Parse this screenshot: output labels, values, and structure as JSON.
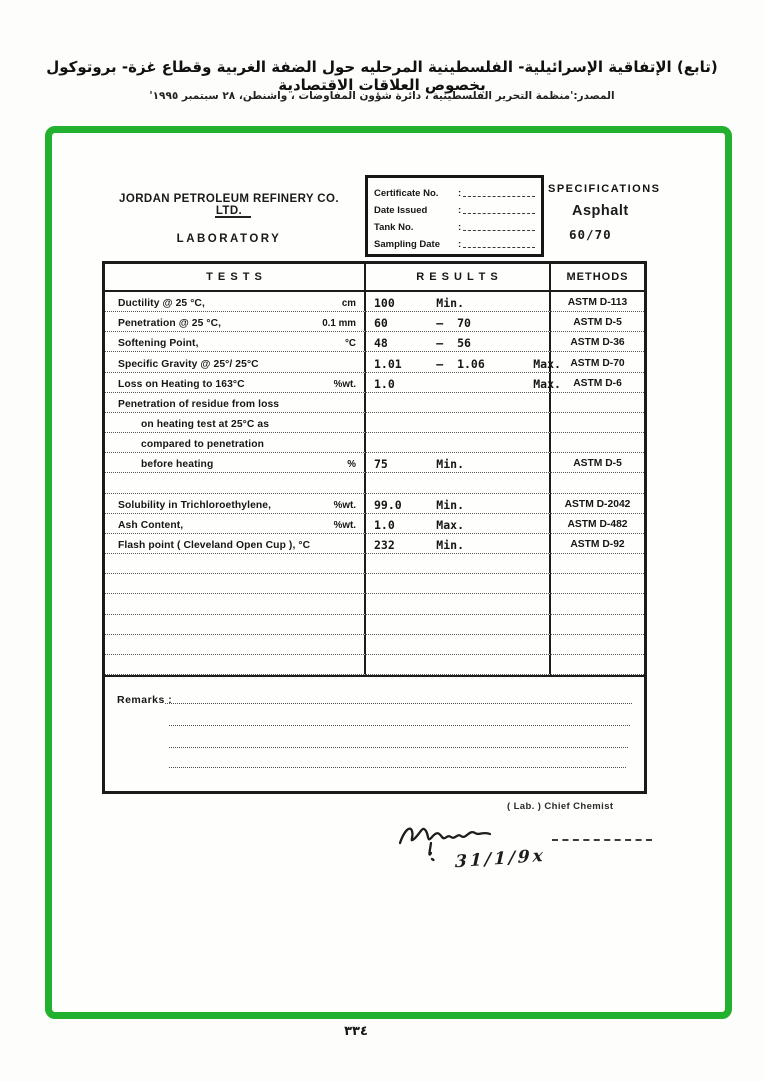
{
  "page_header": {
    "title_ar": "(تابع) الإتفاقية الإسرائيلية- الفلسطينية المرحليه حول الضفة الغربية وقطاع غزة- بروتوكول بخصوص العلاقات الاقتصادية",
    "source_ar": "المصدر:'منظمة التحرير الفلسطينية ، دائرة شؤون المفاوضات ، واشنطن، ٢٨ سبتمبر ١٩٩٥'",
    "page_number_ar": "٣٣٤"
  },
  "frame": {
    "border_color": "#21b12e"
  },
  "document": {
    "company": "JORDAN PETROLEUM REFINERY CO. LTD.",
    "department": "LABORATORY",
    "certificate_fields": [
      {
        "label": "Certificate No."
      },
      {
        "label": "Date Issued"
      },
      {
        "label": "Tank No."
      },
      {
        "label": "Sampling Date"
      }
    ],
    "specifications": {
      "heading": "SPECIFICATIONS",
      "product": "Asphalt",
      "grade": "60/70"
    },
    "table": {
      "headers": {
        "tests": "T E S T S",
        "results": "R E S U L T S",
        "methods": "METHODS"
      },
      "rows": [
        {
          "label": "Ductility    @ 25 °C,",
          "unit": "cm",
          "result": "100      Min.",
          "method": "ASTM D-113",
          "indent": false
        },
        {
          "label": "Penetration @ 25 °C,",
          "unit": "0.1 mm",
          "result": "60       –  70",
          "method": "ASTM D-5",
          "indent": false
        },
        {
          "label": "Softening Point,",
          "unit": "°C",
          "result": "48       –  56",
          "method": "ASTM D-36",
          "indent": false
        },
        {
          "label": "Specific Gravity @ 25°/ 25°C",
          "unit": "",
          "result": "1.01     –  1.06       Max.",
          "method": "ASTM D-70",
          "indent": false
        },
        {
          "label": "Loss on Heating to 163°C",
          "unit": "%wt.",
          "result": "1.0                    Max.",
          "method": "ASTM D-6",
          "indent": false
        },
        {
          "label": "Penetration of residue from loss",
          "unit": "",
          "result": "",
          "method": "",
          "indent": false
        },
        {
          "label": "on heating test at 25°C as",
          "unit": "",
          "result": "",
          "method": "",
          "indent": true
        },
        {
          "label": "compared to penetration",
          "unit": "",
          "result": "",
          "method": "",
          "indent": true
        },
        {
          "label": "before heating",
          "unit": "%",
          "result": "75       Min.",
          "method": "ASTM D-5",
          "indent": true
        },
        {
          "label": "",
          "unit": "",
          "result": "",
          "method": "",
          "indent": false
        },
        {
          "label": "Solubility in Trichloroethylene,",
          "unit": "%wt.",
          "result": "99.0     Min.",
          "method": "ASTM D-2042",
          "indent": false
        },
        {
          "label": "Ash Content,",
          "unit": "%wt.",
          "result": "1.0      Max.",
          "method": "ASTM D-482",
          "indent": false
        },
        {
          "label": "Flash point ( Cleveland Open Cup ), °C",
          "unit": "",
          "result": "232      Min.",
          "method": "ASTM D-92",
          "indent": false
        },
        {
          "label": "",
          "unit": "",
          "result": "",
          "method": "",
          "indent": false
        },
        {
          "label": "",
          "unit": "",
          "result": "",
          "method": "",
          "indent": false
        },
        {
          "label": "",
          "unit": "",
          "result": "",
          "method": "",
          "indent": false
        },
        {
          "label": "",
          "unit": "",
          "result": "",
          "method": "",
          "indent": false
        },
        {
          "label": "",
          "unit": "",
          "result": "",
          "method": "",
          "indent": false
        },
        {
          "label": "",
          "unit": "",
          "result": "",
          "method": "",
          "indent": false
        }
      ],
      "remarks_label": "Remarks :"
    },
    "signature": {
      "title": "( Lab. ) Chief Chemist",
      "date_handwritten": "31/1/9x"
    }
  }
}
